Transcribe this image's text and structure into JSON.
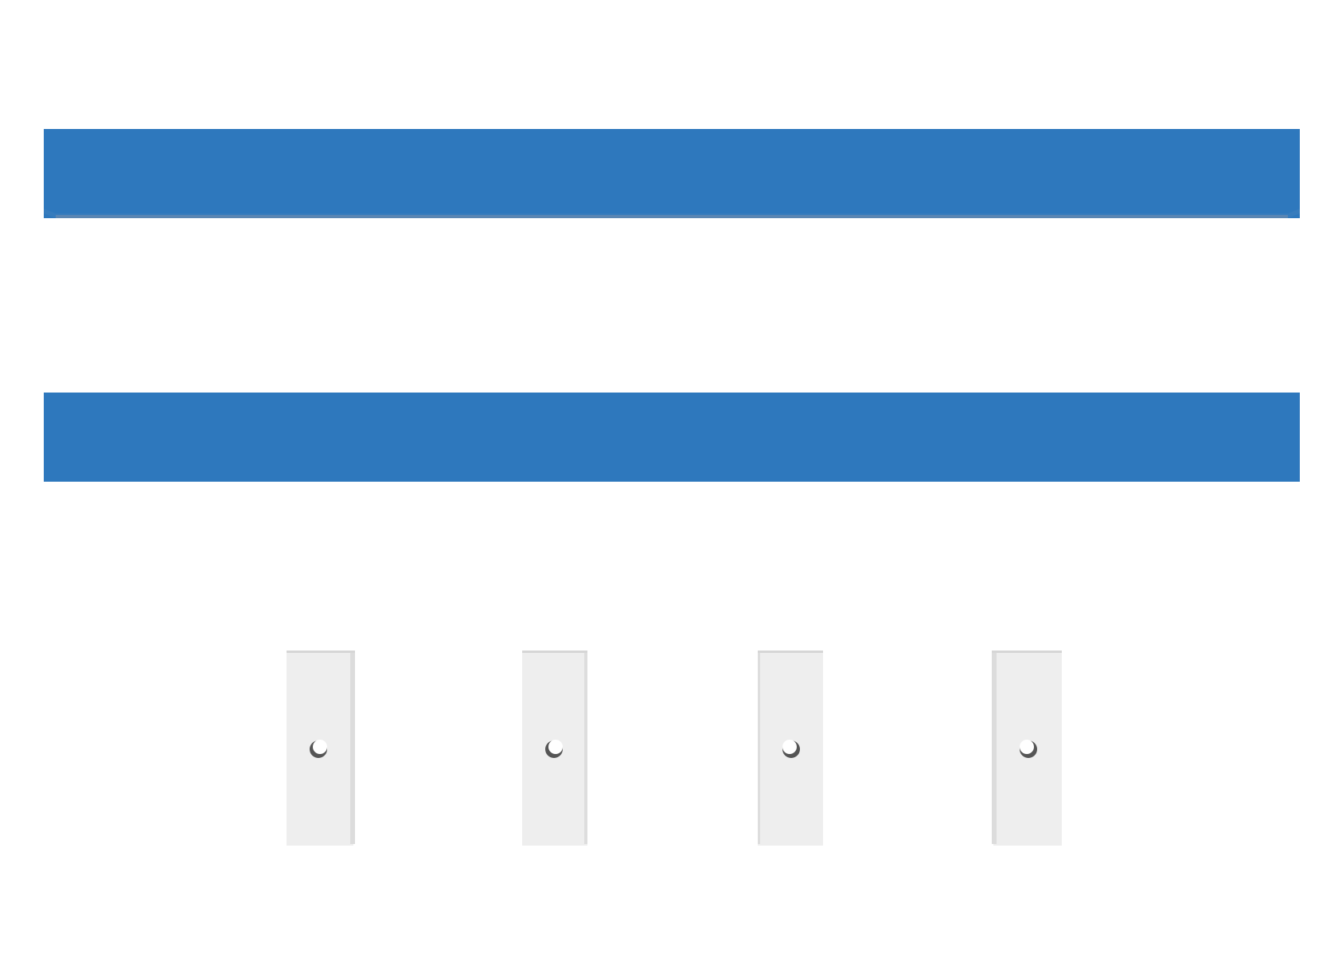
{
  "scene": {
    "description_free": true,
    "rail_color": "#2e78bd",
    "rail_edge_color": "#5a86b3",
    "bracket_color": "#eeeeee",
    "bracket_edge_color": "#d6d6d6",
    "hole_color": "#ffffff",
    "hole_shadow_color": "#555555",
    "rails": [
      {
        "id": "rail-1"
      },
      {
        "id": "rail-2"
      }
    ],
    "brackets": [
      {
        "id": "bracket-1"
      },
      {
        "id": "bracket-2"
      },
      {
        "id": "bracket-3"
      },
      {
        "id": "bracket-4"
      }
    ]
  }
}
